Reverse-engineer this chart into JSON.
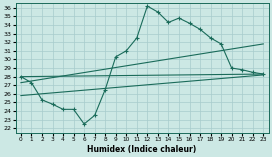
{
  "bg_color": "#cce8e4",
  "line_color": "#1a6b5a",
  "grid_color": "#a8cccc",
  "xlabel": "Humidex (Indice chaleur)",
  "xlim": [
    -0.5,
    23.5
  ],
  "ylim": [
    21.5,
    36.5
  ],
  "xticks": [
    0,
    1,
    2,
    3,
    4,
    5,
    6,
    7,
    8,
    9,
    10,
    11,
    12,
    13,
    14,
    15,
    16,
    17,
    18,
    19,
    20,
    21,
    22,
    23
  ],
  "yticks": [
    22,
    23,
    24,
    25,
    26,
    27,
    28,
    29,
    30,
    31,
    32,
    33,
    34,
    35,
    36
  ],
  "main_x": [
    0,
    1,
    2,
    3,
    4,
    5,
    6,
    7,
    8,
    9,
    10,
    11,
    12,
    13,
    14,
    15,
    16,
    17,
    18,
    19,
    20,
    21,
    22,
    23
  ],
  "main_y": [
    28.0,
    27.3,
    25.3,
    24.8,
    24.2,
    24.2,
    22.5,
    23.5,
    26.5,
    30.3,
    31.0,
    32.5,
    36.2,
    35.5,
    34.3,
    34.8,
    34.2,
    33.5,
    32.5,
    31.8,
    29.0,
    28.8,
    28.5,
    28.3
  ],
  "trend1_x": [
    0,
    23
  ],
  "trend1_y": [
    28.0,
    28.3
  ],
  "trend2_x": [
    0,
    23
  ],
  "trend2_y": [
    27.3,
    31.8
  ],
  "trend3_x": [
    0,
    23
  ],
  "trend3_y": [
    25.8,
    28.2
  ]
}
